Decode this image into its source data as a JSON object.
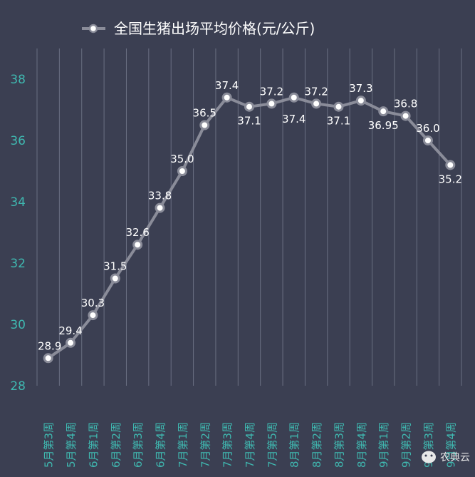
{
  "chart_data": {
    "type": "line",
    "title": "全国生猪出场平均价格(元/公斤)",
    "legend_placement": "top",
    "categories": [
      "5月第3周",
      "5月第4周",
      "6月第1周",
      "6月第2周",
      "6月第3周",
      "6月第4周",
      "7月第1周",
      "7月第2周",
      "7月第3周",
      "7月第4周",
      "7月第5周",
      "8月第1周",
      "8月第2周",
      "8月第3周",
      "8月第4周",
      "9月第1周",
      "9月第2周",
      "9月第3周",
      "9月第4周"
    ],
    "series": [
      {
        "name": "全国生猪出场平均价格(元/公斤)",
        "values": [
          28.9,
          29.4,
          30.3,
          31.5,
          32.6,
          33.8,
          35.0,
          36.5,
          37.4,
          37.1,
          37.2,
          37.4,
          37.2,
          37.1,
          37.3,
          36.95,
          36.8,
          36.0,
          35.2
        ],
        "labels": [
          "28.9",
          "29.4",
          "30.3",
          "31.5",
          "32.6",
          "33.8",
          "35.0",
          "36.5",
          "37.4",
          "37.1",
          "37.2",
          "37.4",
          "37.2",
          "37.1",
          "37.3",
          "36.95",
          "36.8",
          "36.0",
          "35.2"
        ]
      }
    ],
    "yticks": [
      28,
      30,
      32,
      34,
      36,
      38
    ],
    "ylim": [
      28,
      39
    ],
    "xlabel": "",
    "ylabel": "",
    "grid": "vertical",
    "colors": {
      "background": "#3b3f52",
      "line": "#8a8c99",
      "tick": "#3fb8b0",
      "grid": "#6a6f82"
    }
  },
  "watermark": {
    "icon": "wechat-icon",
    "text": "农典云"
  }
}
